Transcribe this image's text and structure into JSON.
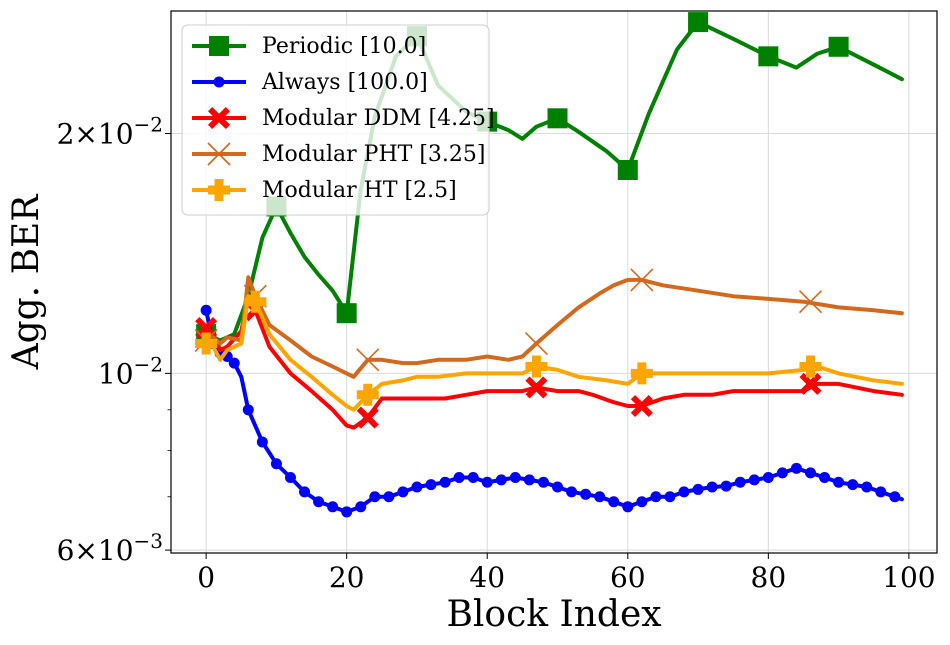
{
  "chart_data": {
    "type": "line",
    "title": "",
    "xlabel": "Block Index",
    "ylabel": "Agg. BER",
    "xlim": [
      -5,
      104
    ],
    "ylim": [
      0.00595,
      0.0285
    ],
    "yscale": "log",
    "grid": true,
    "legend_position": "top-left",
    "x_ticks": [
      {
        "value": 0,
        "label": "0"
      },
      {
        "value": 20,
        "label": "20"
      },
      {
        "value": 40,
        "label": "40"
      },
      {
        "value": 60,
        "label": "60"
      },
      {
        "value": 80,
        "label": "80"
      },
      {
        "value": 100,
        "label": "100"
      }
    ],
    "y_ticks": [
      {
        "value": 0.006,
        "mantissa": "6",
        "exponent": "−3"
      },
      {
        "value": 0.01,
        "mantissa": "",
        "exponent": "−2"
      },
      {
        "value": 0.02,
        "mantissa": "2",
        "exponent": "−2"
      }
    ],
    "y_tick_base": "10",
    "y_tick_times": "×",
    "series": [
      {
        "name": "Periodic [10.0]",
        "color": "#008000",
        "marker": "square",
        "line": [
          [
            0,
            0.0112
          ],
          [
            2,
            0.011
          ],
          [
            4,
            0.0112
          ],
          [
            6,
            0.0125
          ],
          [
            8,
            0.0148
          ],
          [
            10,
            0.0162
          ],
          [
            12,
            0.015
          ],
          [
            14,
            0.014
          ],
          [
            16,
            0.0133
          ],
          [
            18,
            0.0127
          ],
          [
            20,
            0.0119
          ],
          [
            22,
            0.017
          ],
          [
            24,
            0.021
          ],
          [
            27,
            0.025
          ],
          [
            30,
            0.0265
          ],
          [
            33,
            0.023
          ],
          [
            37,
            0.0213
          ],
          [
            40,
            0.0207
          ],
          [
            43,
            0.0202
          ],
          [
            45,
            0.0197
          ],
          [
            47,
            0.0204
          ],
          [
            50,
            0.0209
          ],
          [
            53,
            0.0201
          ],
          [
            57,
            0.019
          ],
          [
            60,
            0.018
          ],
          [
            63,
            0.0212
          ],
          [
            67,
            0.0255
          ],
          [
            70,
            0.0276
          ],
          [
            75,
            0.0263
          ],
          [
            80,
            0.025
          ],
          [
            84,
            0.0242
          ],
          [
            87,
            0.0252
          ],
          [
            90,
            0.0257
          ],
          [
            95,
            0.0244
          ],
          [
            99,
            0.0234
          ]
        ],
        "markers": [
          [
            0,
            0.0112
          ],
          [
            10,
            0.0162
          ],
          [
            20,
            0.0119
          ],
          [
            30,
            0.0265
          ],
          [
            40,
            0.0207
          ],
          [
            50,
            0.0209
          ],
          [
            60,
            0.018
          ],
          [
            70,
            0.0276
          ],
          [
            80,
            0.025
          ],
          [
            90,
            0.0257
          ]
        ]
      },
      {
        "name": "Always [100.0]",
        "color": "#0000ff",
        "marker": "circle",
        "line": [
          [
            0,
            0.012
          ],
          [
            1,
            0.0109
          ],
          [
            2,
            0.0106
          ],
          [
            3,
            0.0105
          ],
          [
            4,
            0.0103
          ],
          [
            5,
            0.0099
          ],
          [
            6,
            0.009
          ],
          [
            8,
            0.0082
          ],
          [
            10,
            0.0077
          ],
          [
            12,
            0.0074
          ],
          [
            14,
            0.0071
          ],
          [
            16,
            0.0069
          ],
          [
            18,
            0.0068
          ],
          [
            20,
            0.0067
          ],
          [
            22,
            0.0068
          ],
          [
            24,
            0.007
          ],
          [
            26,
            0.007
          ],
          [
            28,
            0.0071
          ],
          [
            30,
            0.0072
          ],
          [
            32,
            0.00725
          ],
          [
            34,
            0.0073
          ],
          [
            36,
            0.0074
          ],
          [
            38,
            0.0074
          ],
          [
            40,
            0.0073
          ],
          [
            42,
            0.00735
          ],
          [
            44,
            0.0074
          ],
          [
            46,
            0.00735
          ],
          [
            48,
            0.0073
          ],
          [
            50,
            0.0072
          ],
          [
            52,
            0.0071
          ],
          [
            54,
            0.00705
          ],
          [
            56,
            0.007
          ],
          [
            58,
            0.0069
          ],
          [
            60,
            0.0068
          ],
          [
            62,
            0.0069
          ],
          [
            64,
            0.007
          ],
          [
            66,
            0.007
          ],
          [
            68,
            0.0071
          ],
          [
            70,
            0.00715
          ],
          [
            72,
            0.0072
          ],
          [
            74,
            0.00722
          ],
          [
            76,
            0.0073
          ],
          [
            78,
            0.00735
          ],
          [
            80,
            0.0074
          ],
          [
            82,
            0.0075
          ],
          [
            84,
            0.0076
          ],
          [
            86,
            0.0075
          ],
          [
            88,
            0.0074
          ],
          [
            90,
            0.0073
          ],
          [
            92,
            0.00725
          ],
          [
            94,
            0.0072
          ],
          [
            96,
            0.0071
          ],
          [
            98,
            0.007
          ],
          [
            99,
            0.00695
          ]
        ],
        "markers": [
          [
            0,
            0.012
          ],
          [
            1,
            0.0109
          ],
          [
            2,
            0.0106
          ],
          [
            3,
            0.0105
          ],
          [
            4,
            0.0103
          ],
          [
            6,
            0.009
          ],
          [
            8,
            0.0082
          ],
          [
            10,
            0.0077
          ],
          [
            12,
            0.0074
          ],
          [
            14,
            0.0071
          ],
          [
            16,
            0.0069
          ],
          [
            18,
            0.0068
          ],
          [
            20,
            0.0067
          ],
          [
            22,
            0.0068
          ],
          [
            24,
            0.007
          ],
          [
            26,
            0.007
          ],
          [
            28,
            0.0071
          ],
          [
            30,
            0.0072
          ],
          [
            32,
            0.00725
          ],
          [
            34,
            0.0073
          ],
          [
            36,
            0.0074
          ],
          [
            38,
            0.0074
          ],
          [
            40,
            0.0073
          ],
          [
            42,
            0.00735
          ],
          [
            44,
            0.0074
          ],
          [
            46,
            0.00735
          ],
          [
            48,
            0.0073
          ],
          [
            50,
            0.0072
          ],
          [
            52,
            0.0071
          ],
          [
            54,
            0.00705
          ],
          [
            56,
            0.007
          ],
          [
            58,
            0.0069
          ],
          [
            60,
            0.0068
          ],
          [
            62,
            0.0069
          ],
          [
            64,
            0.007
          ],
          [
            66,
            0.007
          ],
          [
            68,
            0.0071
          ],
          [
            70,
            0.00715
          ],
          [
            72,
            0.0072
          ],
          [
            74,
            0.00722
          ],
          [
            76,
            0.0073
          ],
          [
            78,
            0.00735
          ],
          [
            80,
            0.0074
          ],
          [
            82,
            0.0075
          ],
          [
            84,
            0.0076
          ],
          [
            86,
            0.0075
          ],
          [
            88,
            0.0074
          ],
          [
            90,
            0.0073
          ],
          [
            92,
            0.00725
          ],
          [
            94,
            0.0072
          ],
          [
            96,
            0.0071
          ],
          [
            98,
            0.007
          ]
        ]
      },
      {
        "name": "Modular DDM [4.25]",
        "color": "#ff0000",
        "marker": "x-filled",
        "line": [
          [
            0,
            0.0114
          ],
          [
            1,
            0.0112
          ],
          [
            2,
            0.0107
          ],
          [
            3,
            0.0108
          ],
          [
            5,
            0.0113
          ],
          [
            6,
            0.0125
          ],
          [
            7,
            0.012
          ],
          [
            9,
            0.0108
          ],
          [
            12,
            0.01
          ],
          [
            15,
            0.0095
          ],
          [
            18,
            0.009
          ],
          [
            20,
            0.0086
          ],
          [
            21,
            0.00855
          ],
          [
            23,
            0.0088
          ],
          [
            25,
            0.0093
          ],
          [
            28,
            0.0093
          ],
          [
            31,
            0.0093
          ],
          [
            34,
            0.0093
          ],
          [
            37,
            0.0094
          ],
          [
            40,
            0.0095
          ],
          [
            43,
            0.0095
          ],
          [
            45,
            0.0095
          ],
          [
            47,
            0.0096
          ],
          [
            50,
            0.0095
          ],
          [
            53,
            0.0095
          ],
          [
            55,
            0.0094
          ],
          [
            58,
            0.0092
          ],
          [
            60,
            0.0091
          ],
          [
            62,
            0.0091
          ],
          [
            65,
            0.0093
          ],
          [
            68,
            0.0094
          ],
          [
            72,
            0.0094
          ],
          [
            75,
            0.0095
          ],
          [
            80,
            0.0095
          ],
          [
            85,
            0.0095
          ],
          [
            87,
            0.0097
          ],
          [
            90,
            0.0097
          ],
          [
            95,
            0.0095
          ],
          [
            99,
            0.0094
          ]
        ],
        "markers": [
          [
            0,
            0.0114
          ],
          [
            7,
            0.012
          ],
          [
            23,
            0.0088
          ],
          [
            47,
            0.0096
          ],
          [
            62,
            0.0091
          ],
          [
            86,
            0.0097
          ]
        ]
      },
      {
        "name": "Modular PHT [3.25]",
        "color": "#d2691e",
        "marker": "x-thin",
        "line": [
          [
            0,
            0.011
          ],
          [
            1,
            0.0111
          ],
          [
            2,
            0.0109
          ],
          [
            3,
            0.0111
          ],
          [
            5,
            0.011
          ],
          [
            6,
            0.0132
          ],
          [
            7,
            0.0125
          ],
          [
            9,
            0.0115
          ],
          [
            12,
            0.011
          ],
          [
            15,
            0.0105
          ],
          [
            18,
            0.0102
          ],
          [
            20,
            0.01
          ],
          [
            21,
            0.0099
          ],
          [
            23,
            0.0104
          ],
          [
            25,
            0.0104
          ],
          [
            28,
            0.0103
          ],
          [
            30,
            0.0103
          ],
          [
            33,
            0.0104
          ],
          [
            37,
            0.0104
          ],
          [
            40,
            0.0105
          ],
          [
            43,
            0.0104
          ],
          [
            45,
            0.0105
          ],
          [
            47,
            0.0109
          ],
          [
            50,
            0.0115
          ],
          [
            53,
            0.0121
          ],
          [
            56,
            0.0126
          ],
          [
            58,
            0.0129
          ],
          [
            60,
            0.0131
          ],
          [
            62,
            0.0131
          ],
          [
            65,
            0.0129
          ],
          [
            70,
            0.0127
          ],
          [
            75,
            0.0125
          ],
          [
            80,
            0.0124
          ],
          [
            85,
            0.0123
          ],
          [
            90,
            0.0121
          ],
          [
            95,
            0.012
          ],
          [
            99,
            0.0119
          ]
        ],
        "markers": [
          [
            0,
            0.011
          ],
          [
            7,
            0.0125
          ],
          [
            23,
            0.0104
          ],
          [
            47,
            0.0109
          ],
          [
            62,
            0.0131
          ],
          [
            86,
            0.0123
          ]
        ]
      },
      {
        "name": "Modular HT [2.5]",
        "color": "#ffa500",
        "marker": "plus-filled",
        "line": [
          [
            0,
            0.0109
          ],
          [
            1,
            0.0108
          ],
          [
            2,
            0.0104
          ],
          [
            3,
            0.0107
          ],
          [
            5,
            0.0109
          ],
          [
            6,
            0.0125
          ],
          [
            7,
            0.0123
          ],
          [
            9,
            0.0112
          ],
          [
            12,
            0.0104
          ],
          [
            15,
            0.0099
          ],
          [
            18,
            0.0094
          ],
          [
            20,
            0.0091
          ],
          [
            21,
            0.009
          ],
          [
            23,
            0.0094
          ],
          [
            25,
            0.0097
          ],
          [
            28,
            0.0098
          ],
          [
            30,
            0.0099
          ],
          [
            33,
            0.0099
          ],
          [
            37,
            0.01
          ],
          [
            40,
            0.01
          ],
          [
            43,
            0.01
          ],
          [
            45,
            0.01
          ],
          [
            47,
            0.0102
          ],
          [
            50,
            0.0101
          ],
          [
            53,
            0.0099
          ],
          [
            57,
            0.0098
          ],
          [
            60,
            0.0097
          ],
          [
            62,
            0.01
          ],
          [
            65,
            0.01
          ],
          [
            70,
            0.01
          ],
          [
            75,
            0.01
          ],
          [
            80,
            0.01
          ],
          [
            85,
            0.0101
          ],
          [
            87,
            0.0102
          ],
          [
            90,
            0.01
          ],
          [
            95,
            0.0098
          ],
          [
            99,
            0.0097
          ]
        ],
        "markers": [
          [
            0,
            0.0109
          ],
          [
            7,
            0.0123
          ],
          [
            23,
            0.0094
          ],
          [
            47,
            0.0102
          ],
          [
            62,
            0.01
          ],
          [
            86,
            0.0102
          ]
        ]
      }
    ]
  }
}
